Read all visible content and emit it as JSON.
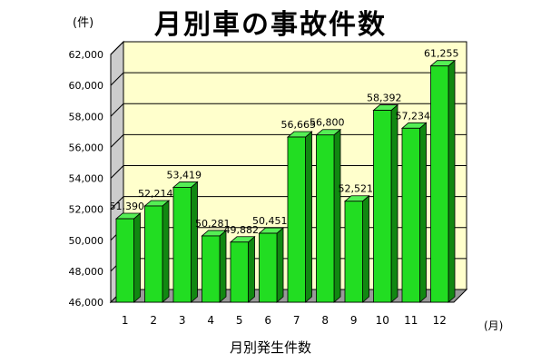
{
  "page": {
    "title": "月別車の事故件数",
    "y_unit": "(件)",
    "x_unit": "(月)"
  },
  "chart_data": {
    "type": "bar",
    "title": "月別車の事故件数",
    "xlabel": "月別発生件数",
    "ylabel": "",
    "categories": [
      "1",
      "2",
      "3",
      "4",
      "5",
      "6",
      "7",
      "8",
      "9",
      "10",
      "11",
      "12"
    ],
    "values": [
      51390,
      52214,
      53419,
      50281,
      49882,
      50451,
      56665,
      56800,
      52521,
      58392,
      57234,
      61255
    ],
    "value_labels": [
      "51,390",
      "52,214",
      "53,419",
      "50,281",
      "49,882",
      "50,451",
      "56,665",
      "56,800",
      "52,521",
      "58,392",
      "57,234",
      "61,255"
    ],
    "ylim": [
      46000,
      62000
    ],
    "yticks": [
      46000,
      48000,
      50000,
      52000,
      54000,
      56000,
      58000,
      60000,
      62000
    ],
    "ytick_labels": [
      "46,000",
      "48,000",
      "50,000",
      "52,000",
      "54,000",
      "56,000",
      "58,000",
      "60,000",
      "62,000"
    ],
    "grid": true,
    "colors": {
      "bar_front": "#22dd22",
      "bar_side": "#118811",
      "bar_top": "#55ee55",
      "plot_bg": "#ffffcc",
      "wall_side": "#cccccc",
      "floor": "#999999"
    }
  }
}
